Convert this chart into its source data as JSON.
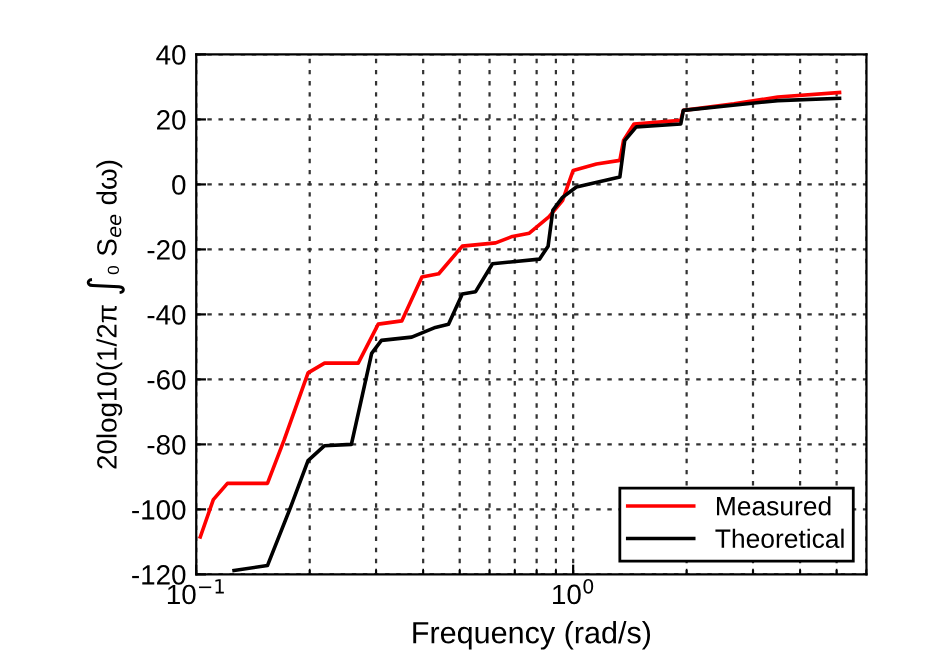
{
  "chart_data": {
    "type": "line",
    "xlabel": "Frequency (rad/s)",
    "ylabel": "20log10(1/2π ∫₀ S$_{ee}$ dω)",
    "log": "x",
    "xlim": [
      0.1,
      6
    ],
    "xticks": [
      {
        "value": 0.1,
        "label": "10$^{−1}$"
      },
      {
        "value": 1,
        "label": "10$^{0}$"
      }
    ],
    "ylim": [
      -120,
      40
    ],
    "yticks": [
      -120,
      -100,
      -80,
      -60,
      -40,
      -20,
      0,
      20,
      40
    ],
    "grid": true,
    "legend": "bottom right",
    "line_style": "solid",
    "series": [
      {
        "name": "Measured",
        "color": "#ff0000",
        "x": [
          0.1025,
          0.111,
          0.121,
          0.1545,
          0.171,
          0.198,
          0.219,
          0.269,
          0.304,
          0.351,
          0.397,
          0.44,
          0.508,
          0.623,
          0.69,
          0.765,
          0.862,
          0.937,
          1.0,
          1.153,
          1.33,
          1.36,
          1.45,
          1.93,
          1.96,
          2.67,
          3.49,
          5.09
        ],
        "values": [
          -108.5,
          -97,
          -92,
          -92,
          -78.7,
          -58,
          -55,
          -55,
          -43,
          -42,
          -28.5,
          -27.5,
          -19,
          -18,
          -16,
          -15,
          -10,
          -5,
          4.3,
          6.3,
          7.4,
          13.5,
          18.6,
          19.7,
          22.8,
          24.8,
          26.9,
          28.3
        ]
      },
      {
        "name": "Theoretical",
        "color": "#000000",
        "x": [
          0.126,
          0.1545,
          0.178,
          0.198,
          0.219,
          0.258,
          0.292,
          0.31,
          0.373,
          0.431,
          0.467,
          0.508,
          0.551,
          0.611,
          0.814,
          0.858,
          0.883,
          0.937,
          1.02,
          1.33,
          1.37,
          1.47,
          1.93,
          1.96,
          3.49,
          5.09
        ],
        "values": [
          -118.8,
          -117.3,
          -99.3,
          -85,
          -80.4,
          -80,
          -52,
          -48,
          -47,
          -44,
          -43,
          -33.7,
          -33,
          -24.4,
          -23,
          -19,
          -8,
          -4,
          -0.8,
          2.3,
          13.5,
          17.7,
          18.6,
          22.8,
          25.8,
          26.5
        ]
      }
    ]
  }
}
